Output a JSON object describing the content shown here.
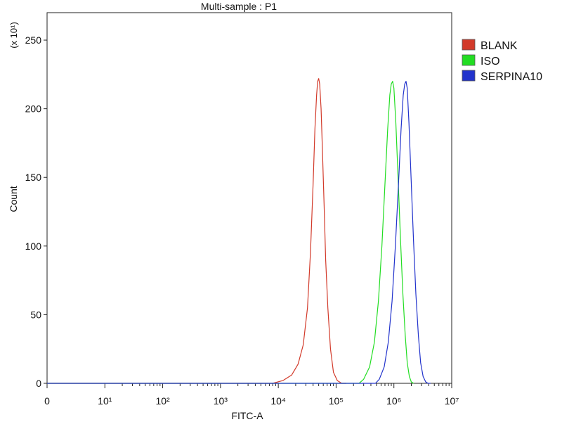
{
  "chart_data": {
    "type": "line",
    "title": "Multi-sample : P1",
    "xlabel": "FITC-A",
    "ylabel": "Count",
    "y_multiplier": "(x 10¹)",
    "xscale": "log",
    "x_ticks": [
      {
        "value": 1,
        "label": "0"
      },
      {
        "value": 10,
        "label": "10¹"
      },
      {
        "value": 100,
        "label": "10²"
      },
      {
        "value": 1000,
        "label": "10³"
      },
      {
        "value": 10000,
        "label": "10⁴"
      },
      {
        "value": 100000,
        "label": "10⁵"
      },
      {
        "value": 1000000,
        "label": "10⁶"
      },
      {
        "value": 10000000,
        "label": "10⁷"
      }
    ],
    "xlim": [
      1,
      10000000
    ],
    "ylim": [
      0,
      270
    ],
    "y_ticks": [
      0,
      50,
      100,
      150,
      200,
      250
    ],
    "legend_position": "right",
    "series": [
      {
        "name": "BLANK",
        "color": "#d23a2a",
        "x": [
          1,
          8000,
          12000,
          17000,
          22000,
          27000,
          32000,
          36000,
          40000,
          43000,
          46000,
          48000,
          50000,
          52000,
          55000,
          58000,
          62000,
          66000,
          72000,
          80000,
          90000,
          105000,
          125000,
          150000
        ],
        "y": [
          0,
          0,
          2,
          6,
          14,
          28,
          55,
          95,
          145,
          185,
          210,
          220,
          222,
          218,
          200,
          170,
          130,
          90,
          55,
          25,
          8,
          2,
          0,
          0
        ]
      },
      {
        "name": "ISO",
        "color": "#22dd22",
        "x": [
          1,
          250000,
          300000,
          380000,
          460000,
          540000,
          620000,
          700000,
          780000,
          850000,
          900000,
          950000,
          1000000,
          1080000,
          1180000,
          1300000,
          1430000,
          1570000,
          1700000,
          1850000,
          2000000,
          2200000
        ],
        "y": [
          0,
          0,
          3,
          12,
          30,
          60,
          100,
          145,
          185,
          210,
          218,
          220,
          215,
          190,
          150,
          105,
          65,
          35,
          15,
          5,
          1,
          0
        ]
      },
      {
        "name": "SERPINA10",
        "color": "#2233cc",
        "x": [
          1,
          480000,
          560000,
          680000,
          800000,
          930000,
          1060000,
          1200000,
          1330000,
          1450000,
          1540000,
          1620000,
          1700000,
          1820000,
          1980000,
          2180000,
          2400000,
          2650000,
          2900000,
          3200000,
          3550000,
          3900000,
          4300000
        ],
        "y": [
          0,
          0,
          3,
          12,
          30,
          60,
          100,
          145,
          185,
          210,
          218,
          220,
          215,
          190,
          150,
          105,
          65,
          35,
          15,
          5,
          1,
          0,
          0
        ]
      }
    ]
  }
}
